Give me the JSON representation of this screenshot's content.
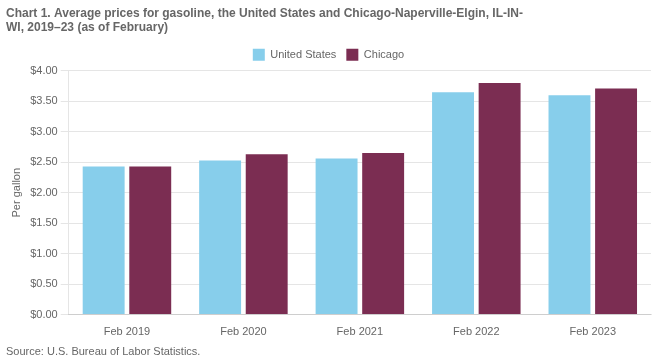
{
  "chart_data": {
    "type": "bar",
    "title": [
      "Chart 1. Average prices for gasoline, the United States and Chicago-Naperville-Elgin, IL-IN-",
      "WI, 2019–23 (as of February)"
    ],
    "y_label": "Per gallon",
    "annotations": [
      "Source: U.S. Bureau of Labor Statistics."
    ],
    "categories": [
      "Feb 2019",
      "Feb 2020",
      "Feb 2021",
      "Feb 2022",
      "Feb 2023"
    ],
    "series": [
      {
        "name": "United States",
        "color": "#87CEEB",
        "values": [
          2.43,
          2.53,
          2.56,
          3.65,
          3.6
        ]
      },
      {
        "name": "Chicago",
        "color": "#7B2D52",
        "values": [
          2.43,
          2.63,
          2.65,
          3.8,
          3.71
        ]
      }
    ],
    "ylim": [
      0,
      4.0
    ],
    "yticks": [
      {
        "value": 0.0,
        "label": "$0.00"
      },
      {
        "value": 0.5,
        "label": "$0.50"
      },
      {
        "value": 1.0,
        "label": "$1.00"
      },
      {
        "value": 1.5,
        "label": "$1.50"
      },
      {
        "value": 2.0,
        "label": "$2.00"
      },
      {
        "value": 2.5,
        "label": "$2.50"
      },
      {
        "value": 3.0,
        "label": "$3.00"
      },
      {
        "value": 3.5,
        "label": "$3.50"
      },
      {
        "value": 4.0,
        "label": "$4.00"
      }
    ],
    "grid": true,
    "legend": "top"
  }
}
